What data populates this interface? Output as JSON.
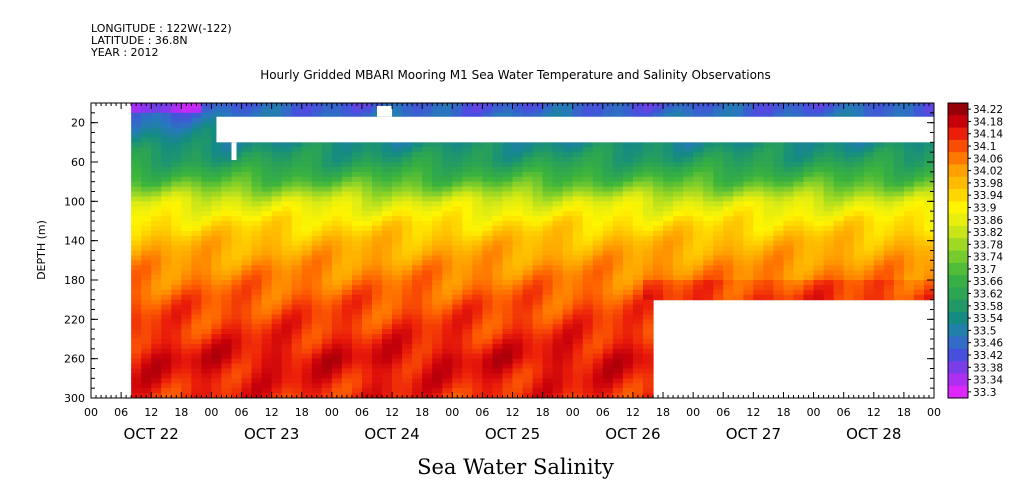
{
  "header": {
    "longitude": "LONGITUDE : 122W(-122)",
    "latitude": "LATITUDE : 36.8N",
    "year": "YEAR : 2012"
  },
  "chart_data": {
    "type": "heatmap",
    "title": "Hourly Gridded MBARI Mooring M1 Sea Water Temperature and Salinity Observations",
    "xlabel": "Sea Water Salinity",
    "ylabel": "DEPTH (m)",
    "y_axis": {
      "range": [
        0,
        300
      ],
      "reversed": true,
      "ticks": [
        20,
        60,
        100,
        140,
        180,
        220,
        260,
        300
      ]
    },
    "x_axis": {
      "range_hours": [
        0,
        168
      ],
      "hour_ticks": [
        "00",
        "06",
        "12",
        "18",
        "00",
        "06",
        "12",
        "18",
        "00",
        "06",
        "12",
        "18",
        "00",
        "06",
        "12",
        "18",
        "00",
        "06",
        "12",
        "18",
        "00",
        "06",
        "12",
        "18",
        "00",
        "06",
        "12",
        "18",
        "00"
      ],
      "day_labels": [
        "OCT 22",
        "OCT 23",
        "OCT 24",
        "OCT 25",
        "OCT 26",
        "OCT 27",
        "OCT 28"
      ]
    },
    "colorbar": {
      "levels": [
        "34.22",
        "34.18",
        "34.14",
        "34.1",
        "34.06",
        "34.02",
        "33.98",
        "33.94",
        "33.9",
        "33.86",
        "33.82",
        "33.78",
        "33.74",
        "33.7",
        "33.66",
        "33.62",
        "33.58",
        "33.54",
        "33.5",
        "33.46",
        "33.42",
        "33.38",
        "33.34",
        "33.3"
      ]
    },
    "depth_profile": [
      {
        "depth": 5,
        "salinity": 33.44
      },
      {
        "depth": 40,
        "salinity": 33.54
      },
      {
        "depth": 60,
        "salinity": 33.6
      },
      {
        "depth": 80,
        "salinity": 33.7
      },
      {
        "depth": 100,
        "salinity": 33.84
      },
      {
        "depth": 120,
        "salinity": 33.92
      },
      {
        "depth": 140,
        "salinity": 33.98
      },
      {
        "depth": 170,
        "salinity": 34.04
      },
      {
        "depth": 200,
        "salinity": 34.09
      },
      {
        "depth": 230,
        "salinity": 34.12
      },
      {
        "depth": 260,
        "salinity": 34.16
      },
      {
        "depth": 300,
        "salinity": 34.13
      }
    ],
    "data_extent_hours": {
      "start": 8,
      "end": 168,
      "deep_end": 112,
      "deep_from_depth": 200
    },
    "missing_regions": [
      {
        "depth_from": 14,
        "depth_to": 40,
        "hours_from": 25,
        "hours_to": 168
      },
      {
        "depth_from": 40,
        "depth_to": 58,
        "hours_from": 28,
        "hours_to": 29
      },
      {
        "depth_from": 3,
        "depth_to": 14,
        "hours_from": 57,
        "hours_to": 60
      }
    ]
  }
}
